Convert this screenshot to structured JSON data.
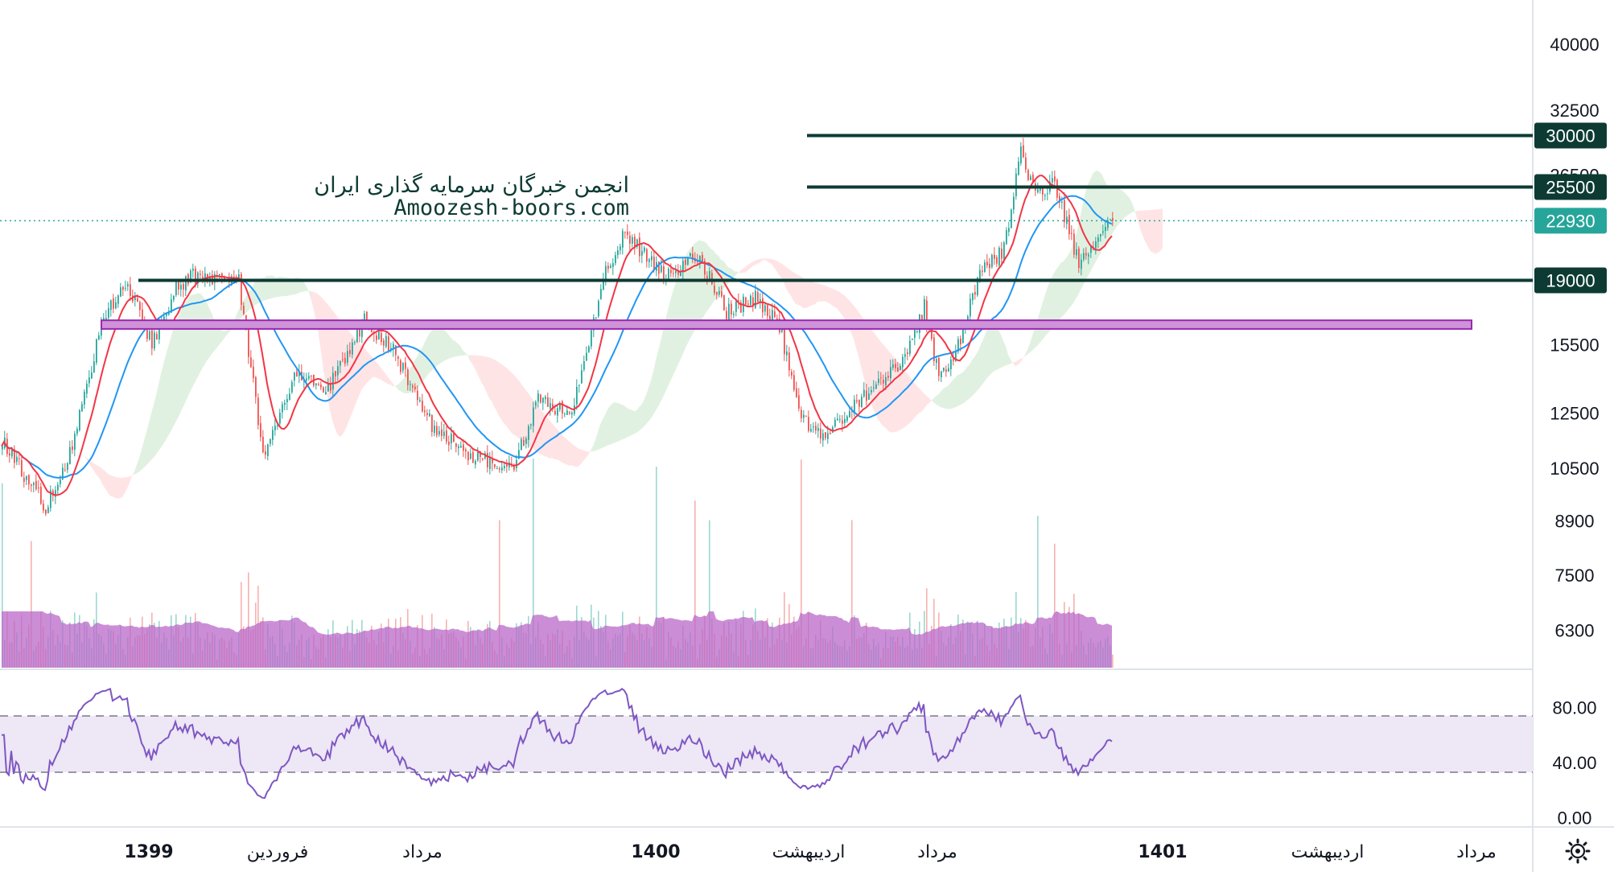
{
  "watermark": {
    "title": "انجمن خبرگان سرمایه گذاری ایران",
    "site": "Amoozesh-boors.com"
  },
  "chart_data": {
    "type": "candlestick",
    "price_axis": {
      "scale": "log",
      "range": [
        5600,
        46000
      ],
      "ticks": [
        "40000",
        "32500",
        "26500",
        "15500",
        "12500",
        "10500",
        "8900",
        "7500",
        "6300"
      ]
    },
    "rsi_axis": {
      "range": [
        -2,
        100
      ],
      "ticks": [
        "80.00",
        "40.00",
        "0.00"
      ],
      "band": [
        30,
        70
      ]
    },
    "x_labels": [
      {
        "text": "1399",
        "bold": true
      },
      {
        "text": "فروردین",
        "bold": false
      },
      {
        "text": "مرداد",
        "bold": false
      },
      {
        "text": "1400",
        "bold": true
      },
      {
        "text": "اردیبهشت",
        "bold": false
      },
      {
        "text": "مرداد",
        "bold": false
      },
      {
        "text": "1401",
        "bold": true
      },
      {
        "text": "اردیبهشت",
        "bold": false
      },
      {
        "text": "مرداد",
        "bold": false
      }
    ],
    "levels": [
      {
        "label": "30000",
        "value": 30000
      },
      {
        "label": "25500",
        "value": 25500
      },
      {
        "label": "19000",
        "value": 19000
      }
    ],
    "last_price": {
      "label": "22930",
      "value": 22930
    },
    "zone": {
      "low": 16300,
      "high": 16750
    },
    "colors": {
      "up": "#26a69a",
      "down": "#ef5350",
      "level": "#0d3b34",
      "last_price": "#26a69a",
      "zone_fill": "#ce93d8",
      "zone_border": "#9c27b0",
      "ma_fast": "#f23645",
      "ma_slow": "#2196f3",
      "rsi_line": "#7e57c2",
      "rsi_band": "#ede7f6",
      "volume_ma": "#ba68c8"
    },
    "anchors": [
      {
        "i": 0,
        "c": 11500
      },
      {
        "i": 10,
        "c": 10200
      },
      {
        "i": 18,
        "c": 9300
      },
      {
        "i": 28,
        "c": 11000
      },
      {
        "i": 42,
        "c": 17000
      },
      {
        "i": 52,
        "c": 18700
      },
      {
        "i": 62,
        "c": 15500
      },
      {
        "i": 72,
        "c": 18500
      },
      {
        "i": 78,
        "c": 19300
      },
      {
        "i": 98,
        "c": 19000
      },
      {
        "i": 108,
        "c": 11000
      },
      {
        "i": 122,
        "c": 14300
      },
      {
        "i": 135,
        "c": 13500
      },
      {
        "i": 150,
        "c": 16800
      },
      {
        "i": 162,
        "c": 15200
      },
      {
        "i": 178,
        "c": 12000
      },
      {
        "i": 196,
        "c": 10800
      },
      {
        "i": 212,
        "c": 10600
      },
      {
        "i": 222,
        "c": 13000
      },
      {
        "i": 236,
        "c": 12500
      },
      {
        "i": 250,
        "c": 19500
      },
      {
        "i": 258,
        "c": 22000
      },
      {
        "i": 275,
        "c": 19200
      },
      {
        "i": 288,
        "c": 20600
      },
      {
        "i": 300,
        "c": 17200
      },
      {
        "i": 312,
        "c": 18000
      },
      {
        "i": 322,
        "c": 16500
      },
      {
        "i": 330,
        "c": 12500
      },
      {
        "i": 340,
        "c": 11500
      },
      {
        "i": 360,
        "c": 13500
      },
      {
        "i": 375,
        "c": 15000
      },
      {
        "i": 382,
        "c": 17500
      },
      {
        "i": 388,
        "c": 14000
      },
      {
        "i": 395,
        "c": 15000
      },
      {
        "i": 405,
        "c": 19500
      },
      {
        "i": 415,
        "c": 21000
      },
      {
        "i": 422,
        "c": 28500
      },
      {
        "i": 428,
        "c": 25000
      },
      {
        "i": 436,
        "c": 25800
      },
      {
        "i": 446,
        "c": 20000
      },
      {
        "i": 460,
        "c": 22930
      }
    ],
    "bars": 461,
    "ma_periods": {
      "fast": 12,
      "slow": 30
    }
  }
}
